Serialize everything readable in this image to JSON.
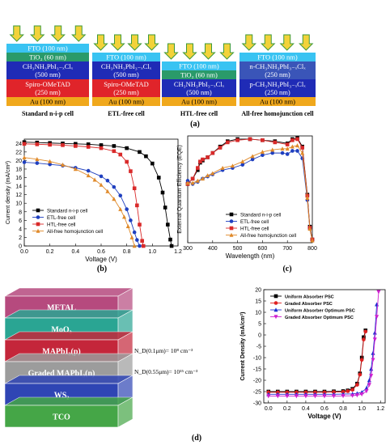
{
  "panel_a": {
    "label": "(a)",
    "stacks": [
      {
        "layers": [
          {
            "text": "FTO (100 nm)",
            "color": "#39c3f2",
            "rows": 1
          },
          {
            "text": "TiO₂ (60 nm)",
            "color": "#2a9a6a",
            "rows": 1
          },
          {
            "text": "CH₃NH₃PbI₃₋ₓClₓ",
            "sub": "(500 nm)",
            "color": "#1f2bb6",
            "rows": 2
          },
          {
            "text": "Spiro-OMeTAD",
            "sub": "(250 nm)",
            "color": "#e0242a",
            "rows": 2
          },
          {
            "text": "Au (100 nm)",
            "color": "#f0a81c",
            "rows": 1
          }
        ],
        "caption": "Standard n-i-p cell"
      },
      {
        "layers": [
          {
            "text": "FTO (100 nm)",
            "color": "#39c3f2",
            "rows": 1
          },
          {
            "text": "CH₃NH₃PbI₃₋ₓClₓ",
            "sub": "(500 nm)",
            "color": "#1f2bb6",
            "rows": 2
          },
          {
            "text": "Spiro-OMeTAD",
            "sub": "(250 nm)",
            "color": "#e0242a",
            "rows": 2
          },
          {
            "text": "Au (100 nm)",
            "color": "#f0a81c",
            "rows": 1
          }
        ],
        "caption": "ETL-free cell"
      },
      {
        "layers": [
          {
            "text": "FTO (100 nm)",
            "color": "#39c3f2",
            "rows": 1
          },
          {
            "text": "TiO₂ (60 nm)",
            "color": "#2a9a6a",
            "rows": 1
          },
          {
            "text": "CH₃NH₃PbI₃₋ₓClₓ",
            "sub": "(500 nm)",
            "color": "#1f2bb6",
            "rows": 2
          },
          {
            "text": "Au (100 nm)",
            "color": "#f0a81c",
            "rows": 1
          }
        ],
        "caption": "HTL-free cell"
      },
      {
        "layers": [
          {
            "text": "FTO (100 nm)",
            "color": "#39c3f2",
            "rows": 1
          },
          {
            "text": "n-CH₃NH₃PbI₃₋ₓClₓ",
            "sub": "(250 nm)",
            "color": "#3a55b8",
            "rows": 2
          },
          {
            "text": "p-CH₃NH₃PbI₃₋ₓClₓ",
            "sub": "(250 nm)",
            "color": "#1f2bb6",
            "rows": 2
          },
          {
            "text": "Au (100 nm)",
            "color": "#f0a81c",
            "rows": 1
          }
        ],
        "caption": "All-free homojunction cell"
      }
    ]
  },
  "panel_b": {
    "label": "(b)"
  },
  "panel_c": {
    "label": "(c)"
  },
  "panel_d": {
    "label": "(d)",
    "layers": [
      {
        "text": "METAL",
        "color": "#b64a7e"
      },
      {
        "text": "MoO₃",
        "color": "#2aa593"
      },
      {
        "text": "MAPbI₃(p)",
        "color": "#c4263a"
      },
      {
        "text": "Graded MAPbI₃(n)",
        "color": "#9c9c9c"
      },
      {
        "text": "WS₂",
        "color": "#2f45b4"
      },
      {
        "text": "TCO",
        "color": "#45a647"
      }
    ],
    "annotations": [
      "N_D(0.1μm)= 10⁸ cm⁻³",
      "N_D(0.55μm)= 10¹⁵ cm⁻³"
    ]
  },
  "chart_data": [
    {
      "type": "line",
      "xlabel": "Voltage (V)",
      "ylabel": "Current density (mA/cm²)",
      "xlim": [
        0.0,
        1.2
      ],
      "ylim": [
        0,
        25
      ],
      "xticks": [
        0.0,
        0.2,
        0.4,
        0.6,
        0.8,
        1.0,
        1.2
      ],
      "yticks": [
        0,
        2,
        4,
        6,
        8,
        10,
        12,
        14,
        16,
        18,
        20,
        22,
        24
      ],
      "legend_position": "bottom-left",
      "series": [
        {
          "name": "Standard n-i-p cell",
          "color": "#000000",
          "marker": "square",
          "x": [
            0.0,
            0.1,
            0.2,
            0.3,
            0.4,
            0.5,
            0.6,
            0.7,
            0.8,
            0.9,
            0.95,
            1.0,
            1.05,
            1.08,
            1.1,
            1.12,
            1.14,
            1.15
          ],
          "y": [
            24.3,
            24.2,
            24.1,
            24.0,
            23.9,
            23.8,
            23.6,
            23.4,
            22.9,
            22.0,
            21.0,
            19.3,
            16.0,
            12.5,
            9.0,
            5.0,
            1.5,
            0
          ]
        },
        {
          "name": "ETL-free cell",
          "color": "#1f3fbf",
          "marker": "circle",
          "x": [
            0.0,
            0.1,
            0.2,
            0.3,
            0.4,
            0.5,
            0.6,
            0.65,
            0.7,
            0.75,
            0.8,
            0.83,
            0.86,
            0.88,
            0.9
          ],
          "y": [
            19.6,
            19.4,
            19.1,
            18.8,
            18.3,
            17.6,
            16.3,
            15.3,
            13.8,
            11.8,
            8.6,
            6.0,
            3.2,
            1.4,
            0
          ]
        },
        {
          "name": "HTL-free cell",
          "color": "#d92a2a",
          "marker": "square",
          "x": [
            0.0,
            0.1,
            0.2,
            0.3,
            0.4,
            0.5,
            0.6,
            0.7,
            0.75,
            0.8,
            0.83,
            0.86,
            0.88,
            0.9,
            0.92,
            0.93
          ],
          "y": [
            23.9,
            23.8,
            23.7,
            23.6,
            23.4,
            23.2,
            22.9,
            22.2,
            21.4,
            19.7,
            17.5,
            13.5,
            9.5,
            5.0,
            1.2,
            0
          ]
        },
        {
          "name": "All-free homojunction cell",
          "color": "#e08a2a",
          "marker": "triangle",
          "x": [
            0.0,
            0.1,
            0.2,
            0.3,
            0.4,
            0.5,
            0.55,
            0.6,
            0.65,
            0.7,
            0.75,
            0.78,
            0.81,
            0.84,
            0.86
          ],
          "y": [
            20.7,
            20.3,
            19.8,
            19.0,
            18.0,
            16.5,
            15.5,
            14.3,
            12.8,
            11.0,
            8.6,
            6.8,
            4.6,
            2.0,
            0
          ]
        }
      ]
    },
    {
      "type": "line",
      "xlabel": "Wavelength (nm)",
      "ylabel": "External Quantum Efficiency (EQE)",
      "xlim": [
        300,
        800
      ],
      "ylim": [
        0,
        1.0
      ],
      "xticks": [
        300,
        400,
        500,
        600,
        700,
        800
      ],
      "legend_position": "bottom-center",
      "series": [
        {
          "name": "Standard n-i-p cell",
          "color": "#000000",
          "marker": "square",
          "x": [
            300,
            320,
            340,
            350,
            360,
            380,
            400,
            430,
            460,
            500,
            550,
            600,
            650,
            700,
            720,
            740,
            760,
            780,
            790,
            800
          ],
          "y": [
            0.55,
            0.6,
            0.68,
            0.75,
            0.77,
            0.8,
            0.84,
            0.9,
            0.95,
            0.97,
            0.97,
            0.96,
            0.95,
            0.93,
            0.97,
            0.98,
            0.9,
            0.45,
            0.15,
            0.03
          ]
        },
        {
          "name": "ETL-free cell",
          "color": "#1f3fbf",
          "marker": "circle",
          "x": [
            300,
            320,
            340,
            360,
            380,
            400,
            440,
            480,
            520,
            560,
            600,
            640,
            680,
            700,
            720,
            740,
            760,
            780,
            790,
            800
          ],
          "y": [
            0.58,
            0.55,
            0.57,
            0.6,
            0.62,
            0.64,
            0.68,
            0.7,
            0.73,
            0.78,
            0.82,
            0.84,
            0.84,
            0.83,
            0.86,
            0.86,
            0.79,
            0.4,
            0.13,
            0.02
          ]
        },
        {
          "name": "HTL-free cell",
          "color": "#d92a2a",
          "marker": "square",
          "x": [
            300,
            320,
            340,
            350,
            360,
            380,
            400,
            430,
            460,
            500,
            550,
            600,
            650,
            700,
            720,
            740,
            760,
            780,
            790,
            800
          ],
          "y": [
            0.55,
            0.6,
            0.7,
            0.76,
            0.78,
            0.8,
            0.84,
            0.89,
            0.94,
            0.96,
            0.97,
            0.96,
            0.94,
            0.92,
            0.96,
            0.97,
            0.89,
            0.44,
            0.14,
            0.03
          ]
        },
        {
          "name": "All-free homojunction cell",
          "color": "#e08a2a",
          "marker": "triangle",
          "x": [
            300,
            320,
            340,
            360,
            380,
            400,
            440,
            480,
            520,
            560,
            600,
            640,
            680,
            700,
            720,
            740,
            760,
            780,
            790,
            800
          ],
          "y": [
            0.56,
            0.56,
            0.58,
            0.6,
            0.63,
            0.65,
            0.7,
            0.72,
            0.76,
            0.81,
            0.85,
            0.87,
            0.88,
            0.88,
            0.9,
            0.91,
            0.84,
            0.42,
            0.13,
            0.02
          ]
        }
      ]
    },
    {
      "type": "line",
      "xlabel": "Voltage (V)",
      "ylabel": "Current Density (mA/cm²)",
      "xlim": [
        -0.05,
        1.25
      ],
      "ylim": [
        -30,
        20
      ],
      "xticks": [
        0.0,
        0.2,
        0.4,
        0.6,
        0.8,
        1.0,
        1.2
      ],
      "yticks": [
        20,
        15,
        10,
        5,
        0,
        -5,
        -10,
        -15,
        -20,
        -25,
        -30
      ],
      "legend_position": "top-left",
      "series": [
        {
          "name": "Uniform Absorber PSC",
          "color": "#000000",
          "marker": "square",
          "x": [
            0.0,
            0.1,
            0.2,
            0.3,
            0.4,
            0.5,
            0.6,
            0.7,
            0.8,
            0.85,
            0.9,
            0.95,
            0.98,
            1.0,
            1.02,
            1.04
          ],
          "y": [
            -25,
            -25,
            -25,
            -25,
            -25,
            -25,
            -25,
            -24.9,
            -24.8,
            -24.5,
            -23.8,
            -21.5,
            -17,
            -10,
            -1,
            2
          ]
        },
        {
          "name": "Graded Absorber PSC",
          "color": "#e02020",
          "marker": "circle",
          "x": [
            0.0,
            0.1,
            0.2,
            0.3,
            0.4,
            0.5,
            0.6,
            0.7,
            0.8,
            0.85,
            0.9,
            0.95,
            0.98,
            1.0,
            1.02,
            1.04
          ],
          "y": [
            -25.3,
            -25.3,
            -25.3,
            -25.3,
            -25.3,
            -25.3,
            -25.3,
            -25.2,
            -25.1,
            -24.8,
            -24.2,
            -22,
            -17.5,
            -11,
            -2,
            1.5
          ]
        },
        {
          "name": "Uniform Absorber Optimum PSC",
          "color": "#1f2fd0",
          "marker": "triangle",
          "x": [
            0.0,
            0.1,
            0.2,
            0.3,
            0.4,
            0.5,
            0.6,
            0.7,
            0.8,
            0.9,
            0.95,
            1.0,
            1.05,
            1.08,
            1.1,
            1.12,
            1.14,
            1.16
          ],
          "y": [
            -26.2,
            -26.2,
            -26.2,
            -26.2,
            -26.2,
            -26.2,
            -26.2,
            -26.2,
            -26.1,
            -26.0,
            -25.8,
            -25.3,
            -23.5,
            -20,
            -15,
            -8,
            1,
            13.5
          ]
        },
        {
          "name": "Graded Absorber Optimum PSC",
          "color": "#d020d0",
          "marker": "triangle-down",
          "x": [
            0.0,
            0.1,
            0.2,
            0.3,
            0.4,
            0.5,
            0.6,
            0.7,
            0.8,
            0.9,
            0.95,
            1.0,
            1.05,
            1.08,
            1.1,
            1.12,
            1.14,
            1.16,
            1.18
          ],
          "y": [
            -27,
            -27,
            -27,
            -27,
            -27,
            -27,
            -27,
            -27,
            -26.9,
            -26.8,
            -26.6,
            -26.2,
            -24.8,
            -22,
            -18,
            -11,
            -2,
            8,
            19
          ]
        }
      ]
    }
  ]
}
